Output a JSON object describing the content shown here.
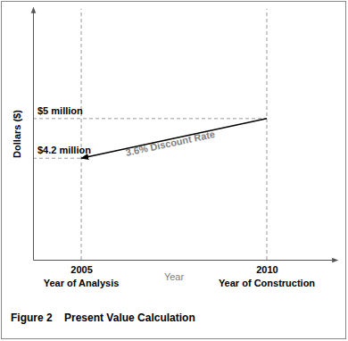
{
  "chart_data": {
    "type": "line",
    "title": "Figure 2    Present Value Calculation",
    "x_label": "Year",
    "y_label": "Dollars ($)",
    "x": [
      2005,
      2010
    ],
    "series": [
      {
        "name": "Present Value",
        "color": "#000000",
        "line_style": "solid",
        "marker": "arrow",
        "values": [
          4200000,
          5000000
        ]
      }
    ],
    "xlim": [
      2003.7,
      2011.9
    ],
    "xticks": [
      2005,
      2010
    ],
    "ylim": [
      2150000,
      7250000
    ],
    "yticks": [
      {
        "value": 4200000,
        "label": "$4.2 million"
      },
      {
        "value": 5000000,
        "label": "$5 million"
      }
    ],
    "grid": true,
    "annotations": [
      {
        "text": "Year of Analysis",
        "x": 2005
      },
      {
        "text": "Year of Construction",
        "x": 2010
      },
      {
        "text": "3.6% Discount Rate",
        "x": 2007.4,
        "y": 4500000
      }
    ]
  }
}
